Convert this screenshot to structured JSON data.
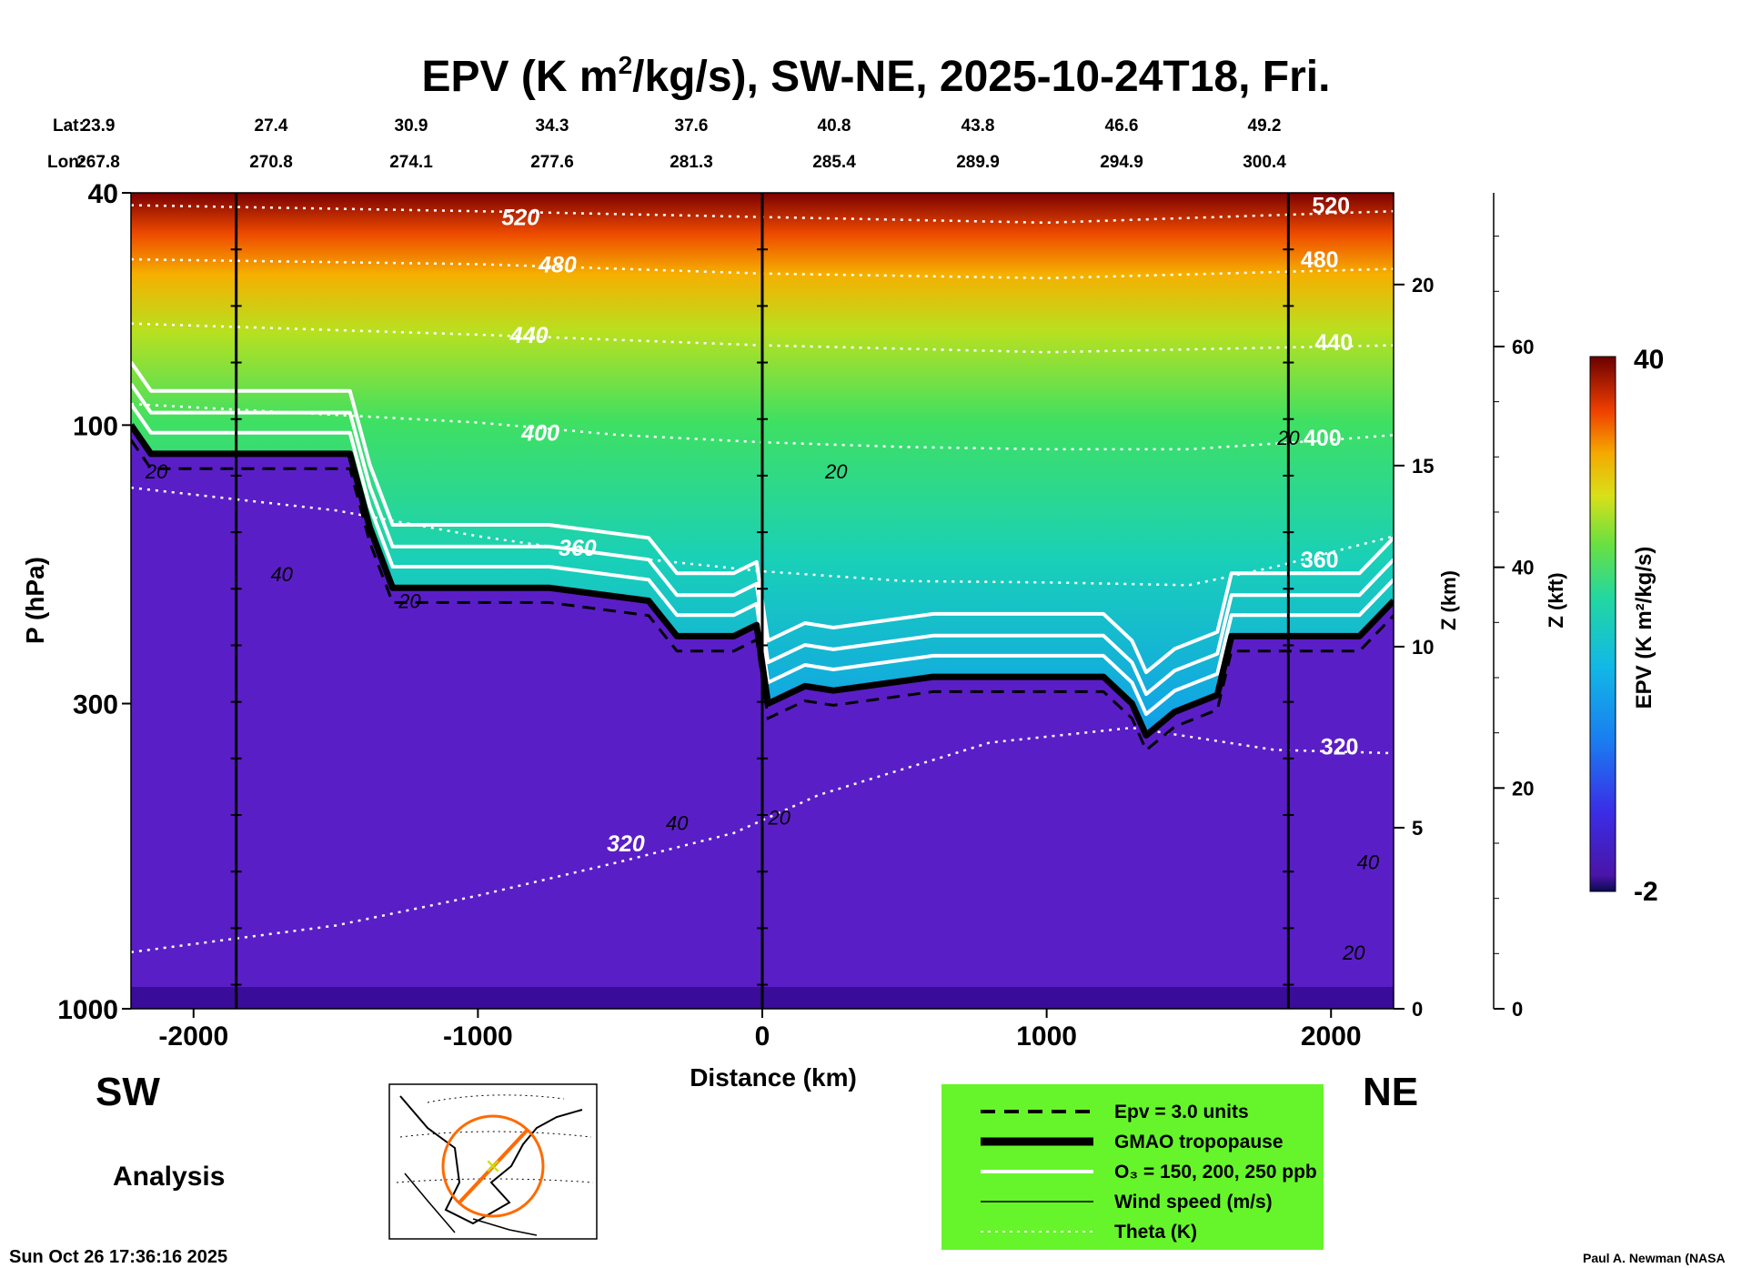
{
  "chart_data": {
    "type": "heatmap",
    "title_parts": {
      "pre": "EPV (K m",
      "sup": "2",
      "post": "/kg/s), SW-NE, 2025-10-24T18, Fri."
    },
    "lat_label": "Lat:",
    "lon_label": "Lon:",
    "lats": [
      "23.9",
      "27.4",
      "30.9",
      "34.3",
      "37.6",
      "40.8",
      "43.8",
      "46.6",
      "49.2"
    ],
    "lons": [
      "267.8",
      "270.8",
      "274.1",
      "277.6",
      "281.3",
      "285.4",
      "289.9",
      "294.9",
      "300.4"
    ],
    "xlabel": "Distance (km)",
    "xlim": [
      -2220,
      2220
    ],
    "xticks": [
      -2000,
      -1000,
      0,
      1000,
      2000
    ],
    "xtick_labels": [
      "-2000",
      "-1000",
      "0",
      "1000",
      "2000"
    ],
    "ylabel": "P (hPa)",
    "ylim_hpa": [
      1000,
      40
    ],
    "yticks": [
      40,
      100,
      300,
      1000
    ],
    "ytick_labels": [
      "40",
      "100",
      "300",
      "1000"
    ],
    "z_km_label": "Z (km)",
    "z_km_ticks": [
      0,
      5,
      10,
      15,
      20
    ],
    "z_km_tick_labels": [
      "0",
      "5",
      "10",
      "15",
      "20"
    ],
    "z_kft_label": "Z (kft)",
    "z_kft_ticks": [
      0,
      20,
      40,
      60
    ],
    "z_kft_tick_labels": [
      "0",
      "20",
      "40",
      "60"
    ],
    "colorbar": {
      "label": "EPV (K m²/kg/s)",
      "min": -2,
      "max": 40,
      "min_label": "-2",
      "max_label": "40"
    },
    "tropopause_hpa": [
      [
        -2220,
        100
      ],
      [
        -2150,
        112
      ],
      [
        -1450,
        112
      ],
      [
        -1380,
        150
      ],
      [
        -1300,
        190
      ],
      [
        -1000,
        190
      ],
      [
        -750,
        190
      ],
      [
        -400,
        200
      ],
      [
        -300,
        230
      ],
      [
        -100,
        230
      ],
      [
        -20,
        220
      ],
      [
        20,
        300
      ],
      [
        150,
        280
      ],
      [
        250,
        285
      ],
      [
        600,
        270
      ],
      [
        1200,
        270
      ],
      [
        1300,
        300
      ],
      [
        1350,
        340
      ],
      [
        1450,
        310
      ],
      [
        1600,
        290
      ],
      [
        1650,
        230
      ],
      [
        1800,
        230
      ],
      [
        2100,
        230
      ],
      [
        2220,
        200
      ]
    ],
    "theta_K": [
      {
        "label": "320",
        "lx": -480,
        "lp": 520,
        "pts": [
          [
            -2220,
            800
          ],
          [
            -1500,
            720
          ],
          [
            -1000,
            640
          ],
          [
            -500,
            560
          ],
          [
            -100,
            500
          ],
          [
            200,
            430
          ],
          [
            800,
            350
          ],
          [
            1300,
            330
          ],
          [
            1800,
            360
          ],
          [
            2220,
            365
          ]
        ]
      },
      {
        "label": "360",
        "lx": -650,
        "lp": 162,
        "pts": [
          [
            -2220,
            128
          ],
          [
            -1500,
            140
          ],
          [
            -1000,
            155
          ],
          [
            -500,
            168
          ],
          [
            0,
            178
          ],
          [
            500,
            185
          ],
          [
            1000,
            186
          ],
          [
            1500,
            188
          ],
          [
            1800,
            175
          ],
          [
            2220,
            155
          ]
        ]
      },
      {
        "label": "400",
        "lx": -780,
        "lp": 103,
        "pts": [
          [
            -2220,
            92
          ],
          [
            -1000,
            99
          ],
          [
            -500,
            104
          ],
          [
            0,
            107
          ],
          [
            500,
            109
          ],
          [
            1000,
            110
          ],
          [
            1500,
            110
          ],
          [
            2000,
            106
          ],
          [
            2220,
            104
          ]
        ]
      },
      {
        "label": "440",
        "lx": -820,
        "lp": 70,
        "pts": [
          [
            -2220,
            67
          ],
          [
            -1000,
            70
          ],
          [
            0,
            73
          ],
          [
            1000,
            75
          ],
          [
            2220,
            73
          ]
        ]
      },
      {
        "label": "480",
        "lx": -720,
        "lp": 53,
        "pts": [
          [
            -2220,
            52
          ],
          [
            -1000,
            53
          ],
          [
            0,
            55
          ],
          [
            1000,
            56
          ],
          [
            2220,
            54
          ]
        ]
      },
      {
        "label": "520",
        "lx": -850,
        "lp": 44,
        "pts": [
          [
            -2220,
            42
          ],
          [
            -1000,
            43
          ],
          [
            0,
            44
          ],
          [
            1000,
            45
          ],
          [
            2220,
            43
          ]
        ]
      }
    ],
    "wind_labels": [
      {
        "label": "20",
        "x": -2130,
        "p": 120
      },
      {
        "label": "40",
        "x": -1690,
        "p": 180
      },
      {
        "label": "20",
        "x": -1240,
        "p": 200
      },
      {
        "label": "40",
        "x": -300,
        "p": 480
      },
      {
        "label": "20",
        "x": 260,
        "p": 120
      },
      {
        "label": "20",
        "x": 60,
        "p": 470
      },
      {
        "label": "20",
        "x": 1850,
        "p": 105
      },
      {
        "label": "40",
        "x": 2130,
        "p": 560
      },
      {
        "label": "20",
        "x": 2080,
        "p": 800
      }
    ],
    "theta_right_labels": [
      {
        "label": "520",
        "x": 2000,
        "p": 42
      },
      {
        "label": "480",
        "x": 1960,
        "p": 52
      },
      {
        "label": "440",
        "x": 2010,
        "p": 72
      },
      {
        "label": "400",
        "x": 1970,
        "p": 105
      },
      {
        "label": "360",
        "x": 1960,
        "p": 170
      },
      {
        "label": "320",
        "x": 2030,
        "p": 355
      }
    ],
    "time_markers_km": [
      -1850,
      0,
      1850
    ],
    "legend": [
      {
        "style": "dashed",
        "label": "Epv = 3.0 units"
      },
      {
        "style": "thick",
        "label": "GMAO tropopause"
      },
      {
        "style": "white",
        "label": "O₃ = 150, 200, 250 ppb"
      },
      {
        "style": "thin",
        "label": "Wind speed (m/s)"
      },
      {
        "style": "dotted",
        "label": "Theta (K)"
      }
    ]
  },
  "labels": {
    "sw": "SW",
    "ne": "NE",
    "analysis": "Analysis",
    "timestamp": "Sun Oct 26 17:36:16 2025",
    "credit": "Paul A. Newman (NASA"
  },
  "colors": {
    "legend_bg": "#66f52a",
    "tropo_fill": "#5a1ec6",
    "strat_blue": "#1b6cf0",
    "accent_marker": "#c8e000",
    "map_circle": "#ff6a00"
  }
}
